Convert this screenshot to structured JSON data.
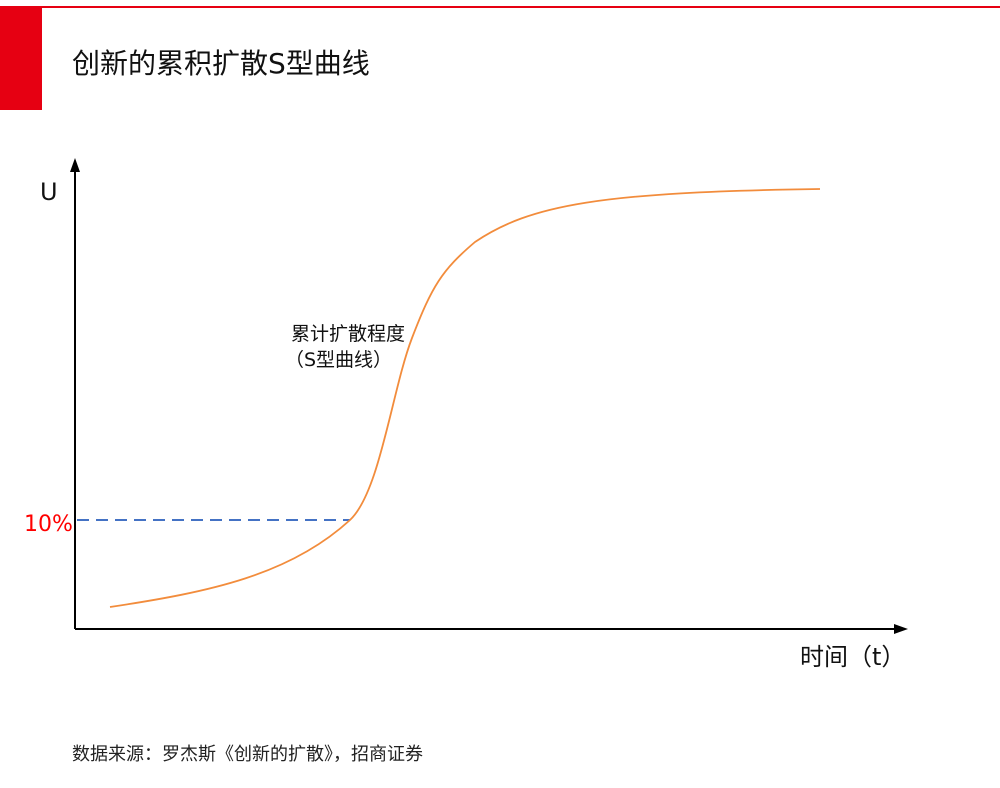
{
  "header": {
    "title": "创新的累积扩散S型曲线"
  },
  "chart_data": {
    "type": "line",
    "y_axis_label": "U",
    "x_axis_label": "时间（t）",
    "reference_line_label": "10%",
    "curve_label_line1": "累计扩散程度",
    "curve_label_line2": "（S型曲线）",
    "colors": {
      "curve": "#f28c3c",
      "reference_line": "#4472c4",
      "reference_label": "#ff0000",
      "axis": "#000000",
      "accent": "#e60012"
    }
  },
  "footer": {
    "source": "数据来源：罗杰斯《创新的扩散》，招商证券"
  }
}
